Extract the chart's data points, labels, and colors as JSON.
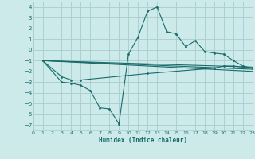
{
  "xlabel": "Humidex (Indice chaleur)",
  "bg_color": "#cceaea",
  "grid_color": "#aacccc",
  "line_color": "#1a6b6b",
  "xlim": [
    0,
    23
  ],
  "ylim": [
    -7.5,
    4.5
  ],
  "xticks": [
    0,
    1,
    2,
    3,
    4,
    5,
    6,
    7,
    8,
    9,
    10,
    11,
    12,
    13,
    14,
    15,
    16,
    17,
    18,
    19,
    20,
    21,
    22,
    23
  ],
  "yticks": [
    -7,
    -6,
    -5,
    -4,
    -3,
    -2,
    -1,
    0,
    1,
    2,
    3,
    4
  ],
  "line1_x": [
    1,
    3,
    4,
    5,
    6,
    7,
    8,
    9,
    10,
    11,
    12,
    13,
    14,
    15,
    16,
    17,
    18,
    19,
    20,
    21,
    22,
    23
  ],
  "line1_y": [
    -1.0,
    -3.0,
    -3.1,
    -3.3,
    -3.8,
    -5.4,
    -5.5,
    -6.9,
    -0.4,
    1.2,
    3.6,
    4.0,
    1.7,
    1.5,
    0.3,
    0.85,
    -0.15,
    -0.3,
    -0.4,
    -1.0,
    -1.5,
    -1.7
  ],
  "line2_x": [
    1,
    3,
    4,
    5,
    12,
    19,
    20,
    21,
    22,
    23
  ],
  "line2_y": [
    -1.0,
    -2.5,
    -2.8,
    -2.8,
    -2.2,
    -1.7,
    -1.5,
    -1.5,
    -1.6,
    -1.7
  ],
  "line3_x": [
    1,
    23
  ],
  "line3_y": [
    -1.0,
    -1.6
  ],
  "line4_x": [
    1,
    23
  ],
  "line4_y": [
    -1.0,
    -1.8
  ],
  "line5_x": [
    1,
    23
  ],
  "line5_y": [
    -1.0,
    -2.0
  ]
}
